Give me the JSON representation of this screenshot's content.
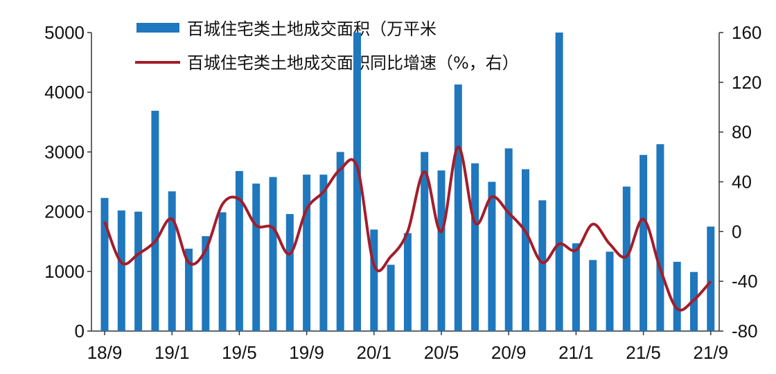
{
  "chart_data": {
    "type": "bar+line",
    "title": "",
    "x": [
      "18/9",
      "18/10",
      "18/11",
      "18/12",
      "19/1",
      "19/2",
      "19/3",
      "19/4",
      "19/5",
      "19/6",
      "19/7",
      "19/8",
      "19/9",
      "19/10",
      "19/11",
      "19/12",
      "20/1",
      "20/2",
      "20/3",
      "20/4",
      "20/5",
      "20/6",
      "20/7",
      "20/8",
      "20/9",
      "20/10",
      "20/11",
      "20/12",
      "21/1",
      "21/2",
      "21/3",
      "21/4",
      "21/5",
      "21/6",
      "21/7",
      "21/8",
      "21/9"
    ],
    "x_tick_labels": [
      "18/9",
      "19/1",
      "19/5",
      "19/9",
      "20/1",
      "20/5",
      "20/9",
      "21/1",
      "21/5",
      "21/9"
    ],
    "series": [
      {
        "name": "百城住宅类土地成交面积（万平米",
        "type": "bar",
        "axis": "left",
        "color": "#1f77bd",
        "values": [
          2230,
          2020,
          2000,
          3690,
          2340,
          1380,
          1590,
          1990,
          2680,
          2470,
          2580,
          1960,
          2620,
          2620,
          3000,
          5000,
          1700,
          1110,
          1640,
          3000,
          2690,
          4130,
          2810,
          2500,
          3060,
          2710,
          2190,
          5000,
          1470,
          1190,
          1330,
          2420,
          2950,
          3130,
          1160,
          990,
          1750
        ]
      },
      {
        "name": "百城住宅类土地成交面积同比增速（%，右）",
        "type": "line",
        "axis": "right",
        "color": "#a31d2a",
        "values": [
          8,
          -25,
          -18,
          -8,
          10,
          -25,
          -15,
          22,
          26,
          5,
          3,
          -18,
          18,
          32,
          50,
          52,
          -27,
          -20,
          0,
          48,
          0,
          68,
          7,
          28,
          15,
          0,
          -25,
          -10,
          -15,
          6,
          -10,
          -20,
          10,
          -30,
          -62,
          -55,
          -40
        ]
      }
    ],
    "y_left": {
      "ylim": [
        0,
        5000
      ],
      "ticks": [
        0,
        1000,
        2000,
        3000,
        4000,
        5000
      ]
    },
    "y_right": {
      "ylim": [
        -80,
        160
      ],
      "ticks": [
        -80,
        -40,
        0,
        40,
        80,
        120,
        160
      ]
    },
    "grid": false,
    "legend": "top"
  }
}
